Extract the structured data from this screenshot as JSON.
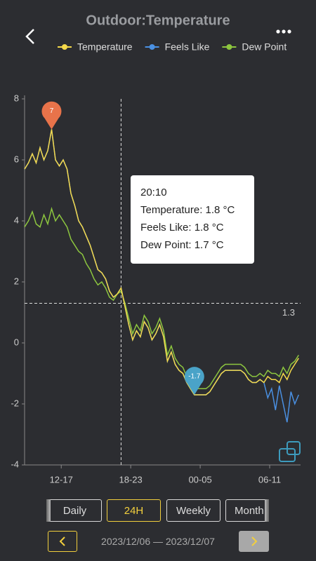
{
  "header": {
    "title": "Outdoor:Temperature"
  },
  "chart_data": {
    "type": "line",
    "series": [
      {
        "name": "Feels Like",
        "color": "#4a90e2",
        "values": [
          5.7,
          5.9,
          6.2,
          5.9,
          6.4,
          6.0,
          6.3,
          7.0,
          6.0,
          5.8,
          6.0,
          5.7,
          4.9,
          4.5,
          4.0,
          3.8,
          3.5,
          3.2,
          2.8,
          2.4,
          2.3,
          2.1,
          1.7,
          1.5,
          1.6,
          1.8,
          1.2,
          0.6,
          0.1,
          0.4,
          0.2,
          0.7,
          0.5,
          0.1,
          0.3,
          0.6,
          0.2,
          -0.6,
          -0.3,
          -0.7,
          -0.9,
          -1.0,
          -1.3,
          -1.5,
          -1.7,
          -1.7,
          -1.7,
          -1.7,
          -1.6,
          -1.4,
          -1.2,
          -1.0,
          -0.9,
          -0.9,
          -0.9,
          -0.9,
          -0.9,
          -1.0,
          -1.2,
          -1.3,
          -1.3,
          -1.2,
          -1.3,
          -1.8,
          -1.5,
          -2.2,
          -1.4,
          -2.0,
          -2.6,
          -1.6,
          -2.0,
          -1.7
        ]
      },
      {
        "name": "Dew Point",
        "color": "#8dc63f",
        "values": [
          3.8,
          4.0,
          4.3,
          3.9,
          3.8,
          4.2,
          3.9,
          4.4,
          4.0,
          4.2,
          4.0,
          3.8,
          3.4,
          3.2,
          3.0,
          2.9,
          2.6,
          2.4,
          2.1,
          1.9,
          2.0,
          1.8,
          1.5,
          1.4,
          1.6,
          1.7,
          1.3,
          0.8,
          0.3,
          0.6,
          0.4,
          0.9,
          0.7,
          0.3,
          0.5,
          0.8,
          0.4,
          -0.4,
          -0.1,
          -0.5,
          -0.7,
          -0.8,
          -1.1,
          -1.3,
          -1.5,
          -1.5,
          -1.5,
          -1.5,
          -1.4,
          -1.2,
          -1.0,
          -0.8,
          -0.7,
          -0.7,
          -0.7,
          -0.7,
          -0.7,
          -0.8,
          -1.0,
          -1.1,
          -1.1,
          -1.0,
          -1.1,
          -0.9,
          -1.0,
          -1.0,
          -1.1,
          -0.8,
          -1.0,
          -0.7,
          -0.6,
          -0.4
        ]
      },
      {
        "name": "Temperature",
        "color": "#f5d94a",
        "values": [
          5.7,
          5.9,
          6.2,
          5.9,
          6.4,
          6.0,
          6.3,
          7.0,
          6.0,
          5.8,
          6.0,
          5.7,
          4.9,
          4.5,
          4.0,
          3.8,
          3.5,
          3.2,
          2.8,
          2.4,
          2.3,
          2.1,
          1.7,
          1.5,
          1.6,
          1.8,
          1.2,
          0.6,
          0.1,
          0.4,
          0.2,
          0.7,
          0.5,
          0.1,
          0.3,
          0.6,
          0.2,
          -0.6,
          -0.3,
          -0.7,
          -0.9,
          -1.0,
          -1.3,
          -1.5,
          -1.7,
          -1.7,
          -1.7,
          -1.7,
          -1.6,
          -1.4,
          -1.2,
          -1.0,
          -0.9,
          -0.9,
          -0.9,
          -0.9,
          -0.9,
          -1.0,
          -1.2,
          -1.3,
          -1.3,
          -1.2,
          -1.3,
          -1.1,
          -1.2,
          -1.2,
          -1.3,
          -1.0,
          -1.2,
          -0.9,
          -0.7,
          -0.5
        ]
      }
    ],
    "legend_order": [
      2,
      0,
      1
    ],
    "xlim": [
      0,
      71.5
    ],
    "xticks": [
      {
        "value": 9.5,
        "label": "12-17"
      },
      {
        "value": 27.5,
        "label": "18-23"
      },
      {
        "value": 45.5,
        "label": "00-05"
      },
      {
        "value": 63.5,
        "label": "06-11"
      }
    ],
    "ylim": [
      -4,
      8
    ],
    "yticks": [
      -4,
      -2,
      0,
      2,
      4,
      6,
      8
    ],
    "crosshair_x": 25,
    "hline": 1.3,
    "markers": [
      {
        "index": 7,
        "value": 7,
        "color": "#e8734a"
      },
      {
        "index": 44,
        "value": -1.7,
        "color": "#4aa3c8"
      }
    ]
  },
  "tooltip": {
    "time": "20:10",
    "lines": [
      "Temperature: 1.8 °C",
      "Feels Like: 1.8 °C",
      "Dew Point: 1.7 °C"
    ]
  },
  "period_buttons": [
    "Daily",
    "24H",
    "Weekly",
    "Month"
  ],
  "date_range": "2023/12/06 — 2023/12/07"
}
